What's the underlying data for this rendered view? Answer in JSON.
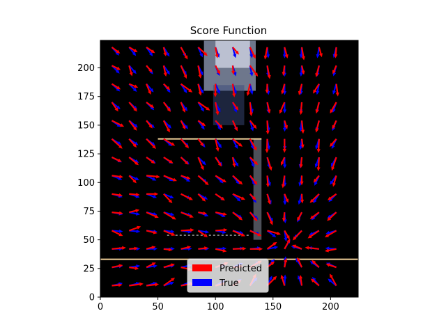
{
  "chart_data": {
    "type": "quiver",
    "title": "Score Function",
    "xlabel": "",
    "ylabel": "",
    "xlim": [
      0,
      224
    ],
    "ylim": [
      0,
      224
    ],
    "x_ticks": [
      0,
      50,
      100,
      150,
      200
    ],
    "y_ticks": [
      0,
      25,
      50,
      75,
      100,
      125,
      150,
      175,
      200
    ],
    "grid": false,
    "legend": {
      "placement": "lower-center",
      "entries": [
        "Predicted",
        "True"
      ]
    },
    "series": [
      {
        "name": "Predicted",
        "color": "#ff0000"
      },
      {
        "name": "True",
        "color": "#0000ff"
      }
    ],
    "background": {
      "description_colors": {
        "base": "#000000",
        "line": "#f2d19a",
        "highlight": "#c8d8ff"
      },
      "horizontal_lines_y": [
        33,
        138
      ],
      "horizontal_lines_x_range": [
        [
          0,
          224
        ],
        [
          50,
          140
        ]
      ]
    },
    "arrow_grid": {
      "x_start": 10,
      "x_step": 15,
      "count_x": 14,
      "y_start": 10,
      "y_step": 16,
      "count_y": 14
    }
  }
}
